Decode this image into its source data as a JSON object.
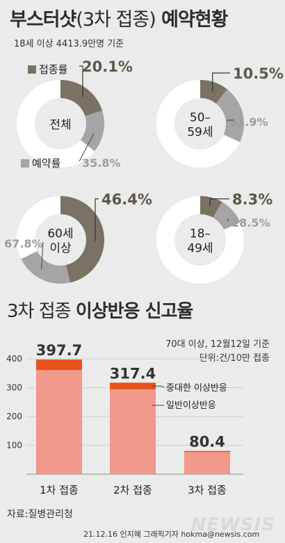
{
  "header": {
    "title_bold": "부스터샷",
    "title_light": "(3차 접종)",
    "title_bold2": "예약현황",
    "subtitle": "18세 이상 4413.9만명 기준"
  },
  "legend": {
    "vaccinated": "접종률",
    "reserved": "예약률"
  },
  "colors": {
    "vaccinated": "#7a7262",
    "reserved": "#a5a5a5",
    "remaining": "#ffffff",
    "severe": "#e8531e",
    "general": "#f1998a",
    "pct_dark": "#5e574a",
    "pct_light": "#9d9d9d"
  },
  "chart_data": [
    {
      "type": "pie",
      "variant": "donut",
      "groups": [
        {
          "label": "전체",
          "vaccinated_label": "20.1%",
          "reserved_label": "35.8%",
          "vaccinated": 20.1,
          "reserved": 35.8
        },
        {
          "label": "50–\n59세",
          "vaccinated_label": "10.5%",
          "reserved_label": "31.9%",
          "vaccinated": 10.5,
          "reserved": 31.9
        },
        {
          "label": "60세\n이상",
          "vaccinated_label": "46.4%",
          "reserved_label": "67.8%",
          "vaccinated": 46.4,
          "reserved": 67.8
        },
        {
          "label": "18–\n49세",
          "vaccinated_label": "8.3%",
          "reserved_label": "18.5%",
          "vaccinated": 8.3,
          "reserved": 18.5
        }
      ]
    },
    {
      "type": "bar",
      "stacked": true,
      "title_plain": "3차 접종",
      "title_bold": "이상반응 신고율",
      "note_line1": "70대 이상, 12월12일 기준",
      "note_line2": "단위:건/10만 접종",
      "categories": [
        "1차 접종",
        "2차 접종",
        "3차 접종"
      ],
      "totals": [
        397.7,
        317.4,
        80.4
      ],
      "total_labels": [
        "397.7",
        "317.4",
        "80.4"
      ],
      "series": [
        {
          "name": "일반이상반응",
          "values": [
            361,
            294,
            78.4
          ]
        },
        {
          "name": "중대한 이상반응",
          "values": [
            36.7,
            23.4,
            2.0
          ]
        }
      ],
      "y_ticks": [
        "100",
        "200",
        "300",
        "400"
      ],
      "ylim": [
        0,
        410
      ]
    }
  ],
  "footer": {
    "source": "자료:질병관리청",
    "credit": "21.12.16 인지혜 그래픽기자 hokma@newsis.com",
    "logo": "NEWSIS"
  }
}
